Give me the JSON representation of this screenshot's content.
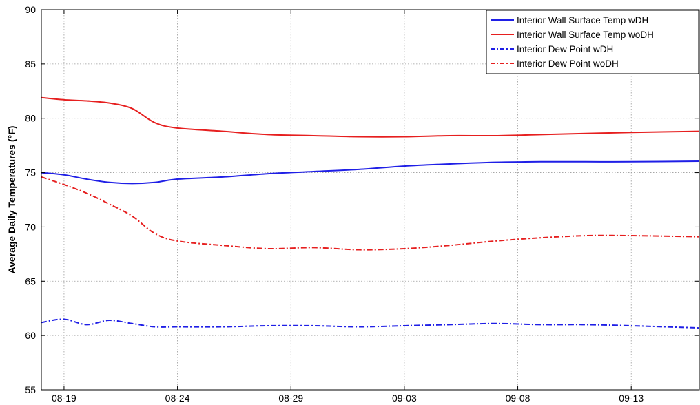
{
  "chart_data": {
    "type": "line",
    "xlabel": "",
    "ylabel": "Average Daily Temperatures (°F)",
    "ylim": [
      55,
      90
    ],
    "xlim": [
      "2020-08-18",
      "2020-09-16"
    ],
    "x_year_note": "",
    "yticks": [
      55,
      60,
      65,
      70,
      75,
      80,
      85,
      90
    ],
    "xticks": [
      {
        "date": "2020-08-19",
        "label": "08-19"
      },
      {
        "date": "2020-08-24",
        "label": "08-24"
      },
      {
        "date": "2020-08-29",
        "label": "08-29"
      },
      {
        "date": "2020-09-03",
        "label": "09-03"
      },
      {
        "date": "2020-09-08",
        "label": "09-08"
      },
      {
        "date": "2020-09-13",
        "label": "09-13"
      }
    ],
    "grid": true,
    "legend_position": "top-right",
    "series": [
      {
        "name": "Interior Wall Surface Temp wDH",
        "color": "#1f1fe6",
        "dash": "solid",
        "x": [
          "2020-08-18",
          "2020-08-19",
          "2020-08-20",
          "2020-08-21",
          "2020-08-22",
          "2020-08-23",
          "2020-08-24",
          "2020-08-26",
          "2020-08-28",
          "2020-08-30",
          "2020-09-01",
          "2020-09-03",
          "2020-09-05",
          "2020-09-07",
          "2020-09-09",
          "2020-09-11",
          "2020-09-13",
          "2020-09-16"
        ],
        "values": [
          75.0,
          74.8,
          74.4,
          74.1,
          74.0,
          74.1,
          74.4,
          74.6,
          74.9,
          75.1,
          75.3,
          75.6,
          75.8,
          75.95,
          76.0,
          76.0,
          76.0,
          76.05
        ]
      },
      {
        "name": "Interior Wall Surface Temp woDH",
        "color": "#e61f1f",
        "dash": "solid",
        "x": [
          "2020-08-18",
          "2020-08-19",
          "2020-08-20",
          "2020-08-21",
          "2020-08-22",
          "2020-08-23",
          "2020-08-24",
          "2020-08-26",
          "2020-08-28",
          "2020-08-30",
          "2020-09-01",
          "2020-09-03",
          "2020-09-05",
          "2020-09-07",
          "2020-09-09",
          "2020-09-11",
          "2020-09-13",
          "2020-09-16"
        ],
        "values": [
          81.9,
          81.7,
          81.6,
          81.4,
          80.9,
          79.6,
          79.1,
          78.8,
          78.5,
          78.4,
          78.3,
          78.3,
          78.4,
          78.4,
          78.5,
          78.6,
          78.7,
          78.8
        ]
      },
      {
        "name": "Interior Dew Point wDH",
        "color": "#1f1fe6",
        "dash": "dashdot",
        "x": [
          "2020-08-18",
          "2020-08-19",
          "2020-08-20",
          "2020-08-21",
          "2020-08-22",
          "2020-08-23",
          "2020-08-24",
          "2020-08-26",
          "2020-08-28",
          "2020-08-30",
          "2020-09-01",
          "2020-09-03",
          "2020-09-05",
          "2020-09-07",
          "2020-09-09",
          "2020-09-11",
          "2020-09-13",
          "2020-09-16"
        ],
        "values": [
          61.2,
          61.5,
          61.0,
          61.4,
          61.1,
          60.8,
          60.8,
          60.8,
          60.9,
          60.9,
          60.8,
          60.9,
          61.0,
          61.1,
          61.0,
          61.0,
          60.9,
          60.7
        ]
      },
      {
        "name": "Interior Dew Point woDH",
        "color": "#e61f1f",
        "dash": "dashdot",
        "x": [
          "2020-08-18",
          "2020-08-19",
          "2020-08-20",
          "2020-08-21",
          "2020-08-22",
          "2020-08-23",
          "2020-08-24",
          "2020-08-26",
          "2020-08-28",
          "2020-08-30",
          "2020-09-01",
          "2020-09-03",
          "2020-09-05",
          "2020-09-07",
          "2020-09-09",
          "2020-09-11",
          "2020-09-13",
          "2020-09-16"
        ],
        "values": [
          74.6,
          73.9,
          73.1,
          72.1,
          71.0,
          69.4,
          68.7,
          68.3,
          68.0,
          68.1,
          67.9,
          68.0,
          68.3,
          68.7,
          69.0,
          69.2,
          69.2,
          69.1
        ]
      }
    ]
  }
}
